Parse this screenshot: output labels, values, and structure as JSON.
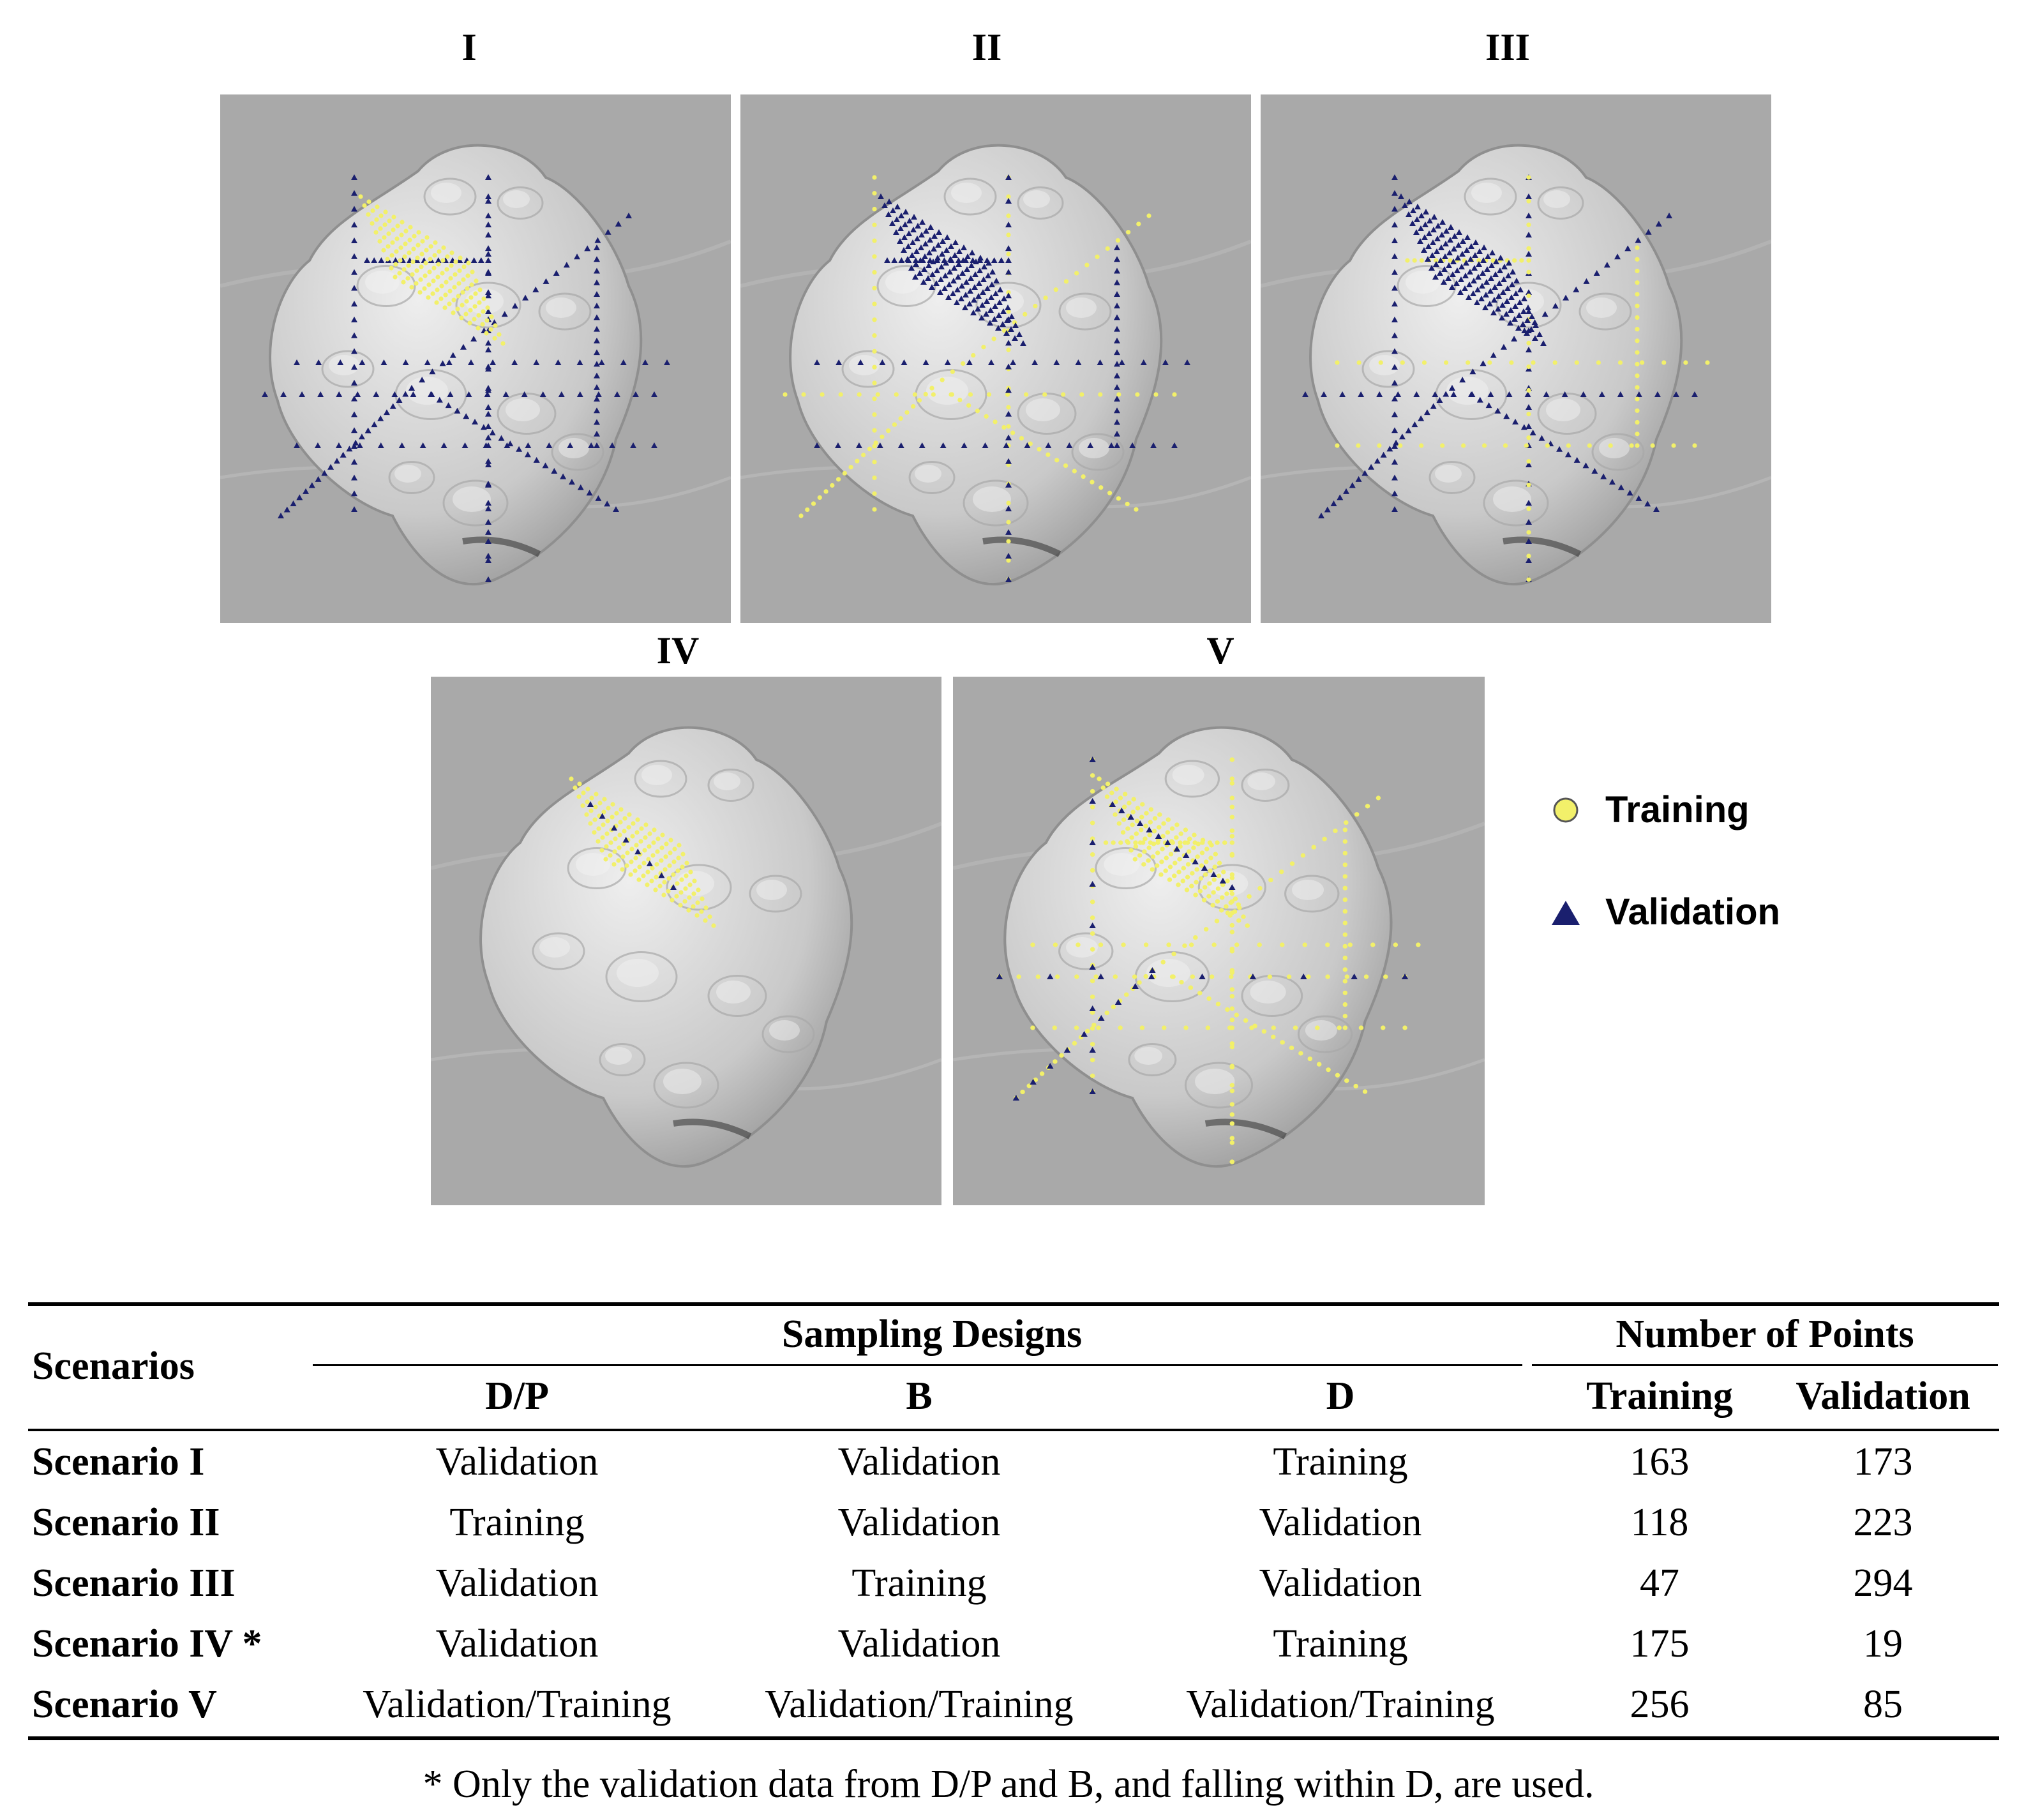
{
  "figure": {
    "panels": [
      {
        "id": "I",
        "label": "I",
        "box_shift": "none"
      },
      {
        "id": "II",
        "label": "II"
      },
      {
        "id": "III",
        "label": "III"
      },
      {
        "id": "IV",
        "label": "IV"
      },
      {
        "id": "V",
        "label": "V"
      }
    ],
    "legend": {
      "training_label": "Training",
      "validation_label": "Validation",
      "training_color": "#f2f06a",
      "validation_color": "#1a1f6e"
    },
    "colors": {
      "terrain_bg": "#a9a9a9",
      "terrain_relief": "#d7d7d7"
    }
  },
  "table": {
    "header": {
      "scenarios": "Scenarios",
      "sampling_designs": "Sampling Designs",
      "number_of_points": "Number of Points",
      "dp": "D/P",
      "b": "B",
      "d": "D",
      "training": "Training",
      "validation": "Validation"
    },
    "rows": [
      {
        "scenario": "Scenario I",
        "dp": "Validation",
        "b": "Validation",
        "d": "Training",
        "training": "163",
        "validation": "173"
      },
      {
        "scenario": "Scenario II",
        "dp": "Training",
        "b": "Validation",
        "d": "Validation",
        "training": "118",
        "validation": "223"
      },
      {
        "scenario": "Scenario III",
        "dp": "Validation",
        "b": "Training",
        "d": "Validation",
        "training": "47",
        "validation": "294"
      },
      {
        "scenario": "Scenario IV *",
        "dp": "Validation",
        "b": "Validation",
        "d": "Training",
        "training": "175",
        "validation": "19"
      },
      {
        "scenario": "Scenario V",
        "dp": "Validation/Training",
        "b": "Validation/Training",
        "d": "Validation/Training",
        "training": "256",
        "validation": "85"
      }
    ],
    "footnote": "* Only the validation data from D/P and B, and falling within D, are used."
  }
}
